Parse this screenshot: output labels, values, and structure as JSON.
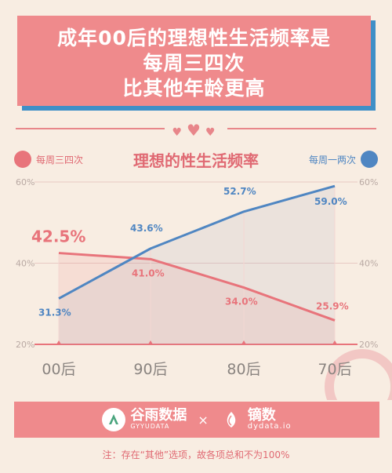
{
  "title": {
    "line1": "成年00后的理想性生活频率是",
    "line2": "每周三四次",
    "line3": "比其他年龄更高"
  },
  "colors": {
    "pink": "#e8747b",
    "blue": "#4f86c2",
    "title_bg": "#ef8a8c",
    "shadow_blue": "#3f8fc7",
    "background": "#f8ede2"
  },
  "chart_data": {
    "type": "line",
    "title": "理想的性生活频率",
    "categories": [
      "00后",
      "90后",
      "80后",
      "70后"
    ],
    "ylim": [
      20,
      60
    ],
    "yticks": [
      "20%",
      "40%",
      "60%"
    ],
    "series": [
      {
        "name": "每周三四次",
        "color": "#e8747b",
        "values": [
          42.5,
          41.0,
          34.0,
          25.9
        ],
        "labels": [
          "42.5%",
          "41.0%",
          "34.0%",
          "25.9%"
        ]
      },
      {
        "name": "每周一两次",
        "color": "#4f86c2",
        "values": [
          31.3,
          43.6,
          52.7,
          59.0
        ],
        "labels": [
          "31.3%",
          "43.6%",
          "52.7%",
          "59.0%"
        ]
      }
    ],
    "legend_left": "每周三四次",
    "legend_right": "每周一两次",
    "grid": true
  },
  "footer": {
    "brand1_name": "谷雨数据",
    "brand1_sub": "GYYUDATA",
    "times": "×",
    "brand2_name": "镝数",
    "brand2_sub": "dydata.io",
    "note": "注：存在“其他”选项，故各项总和不为100%"
  }
}
